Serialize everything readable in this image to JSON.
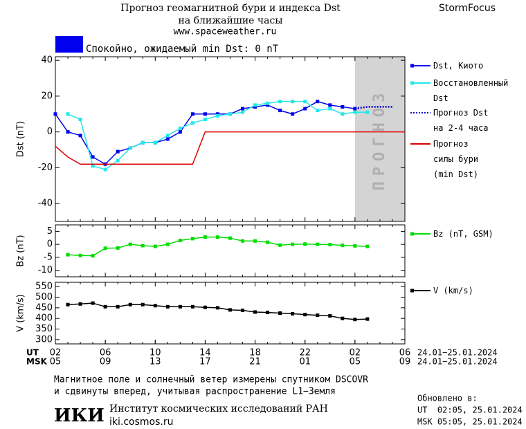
{
  "header": {
    "title_line1": "Прогноз геомагнитной бури и индекса Dst",
    "title_line2": "на ближайшие часы",
    "url": "www.spaceweather.ru",
    "brand": "StormFocus",
    "status": "Спокойно, ожидаемый min Dst: 0 nT",
    "status_color": "#0000ee"
  },
  "chart_data": [
    {
      "type": "line",
      "ylabel": "Dst (nT)",
      "xlim": [
        0,
        28
      ],
      "ylim": [
        -50,
        42
      ],
      "yticks": [
        -40,
        -20,
        0,
        20,
        40
      ],
      "forecast_region": {
        "xlim": [
          24,
          28
        ],
        "label": "ПРОГНОЗ",
        "color": "#d4d4d4"
      },
      "series": [
        {
          "name": "Dst, Киото",
          "color": "#0000ee",
          "marker": true,
          "dotted": false,
          "x": [
            0,
            1,
            2,
            3,
            4,
            5,
            6,
            7,
            8,
            9,
            10,
            11,
            12,
            13,
            14,
            15,
            16,
            17,
            18,
            19,
            20,
            21,
            22,
            23,
            24
          ],
          "values": [
            10,
            0,
            -2,
            -14,
            -18,
            -11,
            -9,
            -6,
            -6,
            -4,
            0,
            10,
            10,
            10,
            10,
            13,
            14,
            15,
            12,
            10,
            13,
            17,
            15,
            14,
            13
          ]
        },
        {
          "name": "Восстановленный\nDst",
          "color": "#22e8e8",
          "marker": true,
          "dotted": false,
          "x": [
            1,
            2,
            3,
            4,
            5,
            6,
            7,
            8,
            9,
            10,
            11,
            12,
            13,
            14,
            15,
            16,
            17,
            18,
            19,
            20,
            21,
            22,
            23,
            24,
            25
          ],
          "values": [
            10,
            7,
            -19,
            -21,
            -16,
            -9,
            -6,
            -6,
            -2,
            2,
            5,
            7,
            9,
            10,
            11,
            15,
            16,
            17,
            17,
            17,
            12,
            13,
            10,
            11,
            11
          ]
        },
        {
          "name": "Прогноз Dst\nна 2-4 часа",
          "color": "#0000cc",
          "marker": false,
          "dotted": true,
          "x": [
            24,
            25,
            26,
            27
          ],
          "values": [
            13,
            14,
            14,
            14
          ]
        },
        {
          "name": "Прогноз\nсилы бури\n(min Dst)",
          "color": "#dd0000",
          "marker": false,
          "dotted": false,
          "x": [
            0,
            1,
            2,
            11,
            12,
            28
          ],
          "values": [
            -8,
            -14,
            -18,
            -18,
            0,
            0
          ]
        }
      ]
    },
    {
      "type": "line",
      "ylabel": "Bz (nT)",
      "xlim": [
        0,
        28
      ],
      "ylim": [
        -12.5,
        7.5
      ],
      "yticks": [
        -10,
        -5,
        0,
        5
      ],
      "series": [
        {
          "name": "Bz (nT, GSM)",
          "color": "#00dd00",
          "marker": true,
          "dotted": false,
          "x": [
            1,
            2,
            3,
            4,
            5,
            6,
            7,
            8,
            9,
            10,
            11,
            12,
            13,
            14,
            15,
            16,
            17,
            18,
            19,
            20,
            21,
            22,
            23,
            24,
            25
          ],
          "values": [
            -4,
            -4.3,
            -4.4,
            -1.5,
            -1.4,
            0,
            -0.5,
            -0.8,
            0,
            1.5,
            2.2,
            2.8,
            2.8,
            2.4,
            1.3,
            1.3,
            0.8,
            -0.3,
            0,
            0.1,
            0,
            -0.1,
            -0.4,
            -0.6,
            -0.8
          ]
        }
      ]
    },
    {
      "type": "line",
      "ylabel": "V (km/s)",
      "xlim": [
        0,
        28
      ],
      "ylim": [
        280,
        570
      ],
      "yticks": [
        300,
        350,
        400,
        450,
        500,
        550
      ],
      "xticks": [
        {
          "value": 0,
          "label": "02"
        },
        {
          "value": 4,
          "label": "06"
        },
        {
          "value": 8,
          "label": "10"
        },
        {
          "value": 12,
          "label": "14"
        },
        {
          "value": 16,
          "label": "18"
        },
        {
          "value": 20,
          "label": "22"
        },
        {
          "value": 24,
          "label": "02"
        },
        {
          "value": 28,
          "label": "06"
        }
      ],
      "x2ticks": [
        {
          "value": 0,
          "label": "05"
        },
        {
          "value": 4,
          "label": "09"
        },
        {
          "value": 8,
          "label": "13"
        },
        {
          "value": 12,
          "label": "17"
        },
        {
          "value": 16,
          "label": "21"
        },
        {
          "value": 20,
          "label": "01"
        },
        {
          "value": 24,
          "label": "05"
        },
        {
          "value": 28,
          "label": "09"
        }
      ],
      "xlabel": "UT",
      "x2label": "MSK",
      "xrange_text": "24.01−25.01.2024",
      "x2range_text": "24.01−25.01.2024",
      "series": [
        {
          "name": "V (km/s)",
          "color": "#000000",
          "marker": true,
          "dotted": false,
          "x": [
            1,
            2,
            3,
            4,
            5,
            6,
            7,
            8,
            9,
            10,
            11,
            12,
            13,
            14,
            15,
            16,
            17,
            18,
            19,
            20,
            21,
            22,
            23,
            24,
            25
          ],
          "values": [
            465,
            468,
            472,
            455,
            455,
            465,
            465,
            460,
            455,
            455,
            455,
            452,
            450,
            440,
            438,
            430,
            428,
            425,
            422,
            418,
            415,
            412,
            400,
            395,
            397
          ]
        }
      ]
    }
  ],
  "footer": {
    "line1": "Магнитное поле и солнечный ветер измерены спутником DSCOVR",
    "line2": "и сдвинуты вперед, учитывая распространение L1−Земля",
    "logo": "ИКИ",
    "institute": "Институт космических исследований РАН",
    "site": "iki.cosmos.ru",
    "updated": "Обновлено в:",
    "updated_ut": "UT  02:05, 25.01.2024",
    "updated_msk": "MSK 05:05, 25.01.2024"
  }
}
